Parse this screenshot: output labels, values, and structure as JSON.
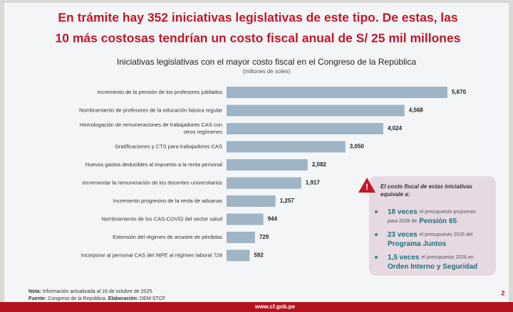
{
  "headline": [
    "En trámite hay 352 iniciativas legislativas de este tipo. De estas, las",
    "10 más costosas tendrían un costo fiscal anual de S/ 25 mil millones"
  ],
  "chart_data": {
    "type": "bar",
    "orientation": "horizontal",
    "title": "Iniciativas legislativas con el mayor costo fiscal en el Congreso de la República",
    "subtitle": "(millones de soles)",
    "color": "#9fb4c4",
    "categories": [
      "Incremento de la pensión de los profesores jubilados",
      "Nombramiento de profesores de la educación básica regular",
      "Homologación de remuneraciones de trabajadores CAS con otros regímenes",
      "Gratificaciones y CTS para trabajadores CAS",
      "Nuevos gastos deducibles al impuesto a la renta personal",
      "Incrementar la remuneración de los docentes universitarios",
      "Incremento progresivo de la renta de aduanas",
      "Nombramiento de los CAS-COVID del sector salud",
      "Extensión del régimen de arrastre de pérdidas",
      "Incorporar al personal CAS del INPE al régimen laboral 728"
    ],
    "values": [
      5670,
      4568,
      4024,
      3050,
      2082,
      1917,
      1257,
      944,
      729,
      592
    ],
    "value_labels": [
      "5,670",
      "4,568",
      "4,024",
      "3,050",
      "2,082",
      "1,917",
      "1,257",
      "944",
      "729",
      "592"
    ]
  },
  "callout": {
    "heading": "El costo fiscal de estas iniciativas equivale a:",
    "items": [
      {
        "lead": "18 veces",
        "text1": "el presupuesto propuesto",
        "text2": "para 2026 de",
        "program": "Pensión 65"
      },
      {
        "lead": "23 veces",
        "text1": "el presupuesto 2026 del",
        "program": "Programa Juntos"
      },
      {
        "lead": "1,5 veces",
        "text1": "el presupuesto 2026 en",
        "program": "Orden Interno y Seguridad"
      }
    ]
  },
  "footer": {
    "note_label": "Nota:",
    "note": "Información actualizada al 16 de octubre de 2025.",
    "source_label": "Fuente:",
    "source": "Congreso de la República.",
    "elab_label": "Elaboración:",
    "elab": "DEM-STCF",
    "url": "www.cf.gob.pe",
    "page": "2"
  }
}
